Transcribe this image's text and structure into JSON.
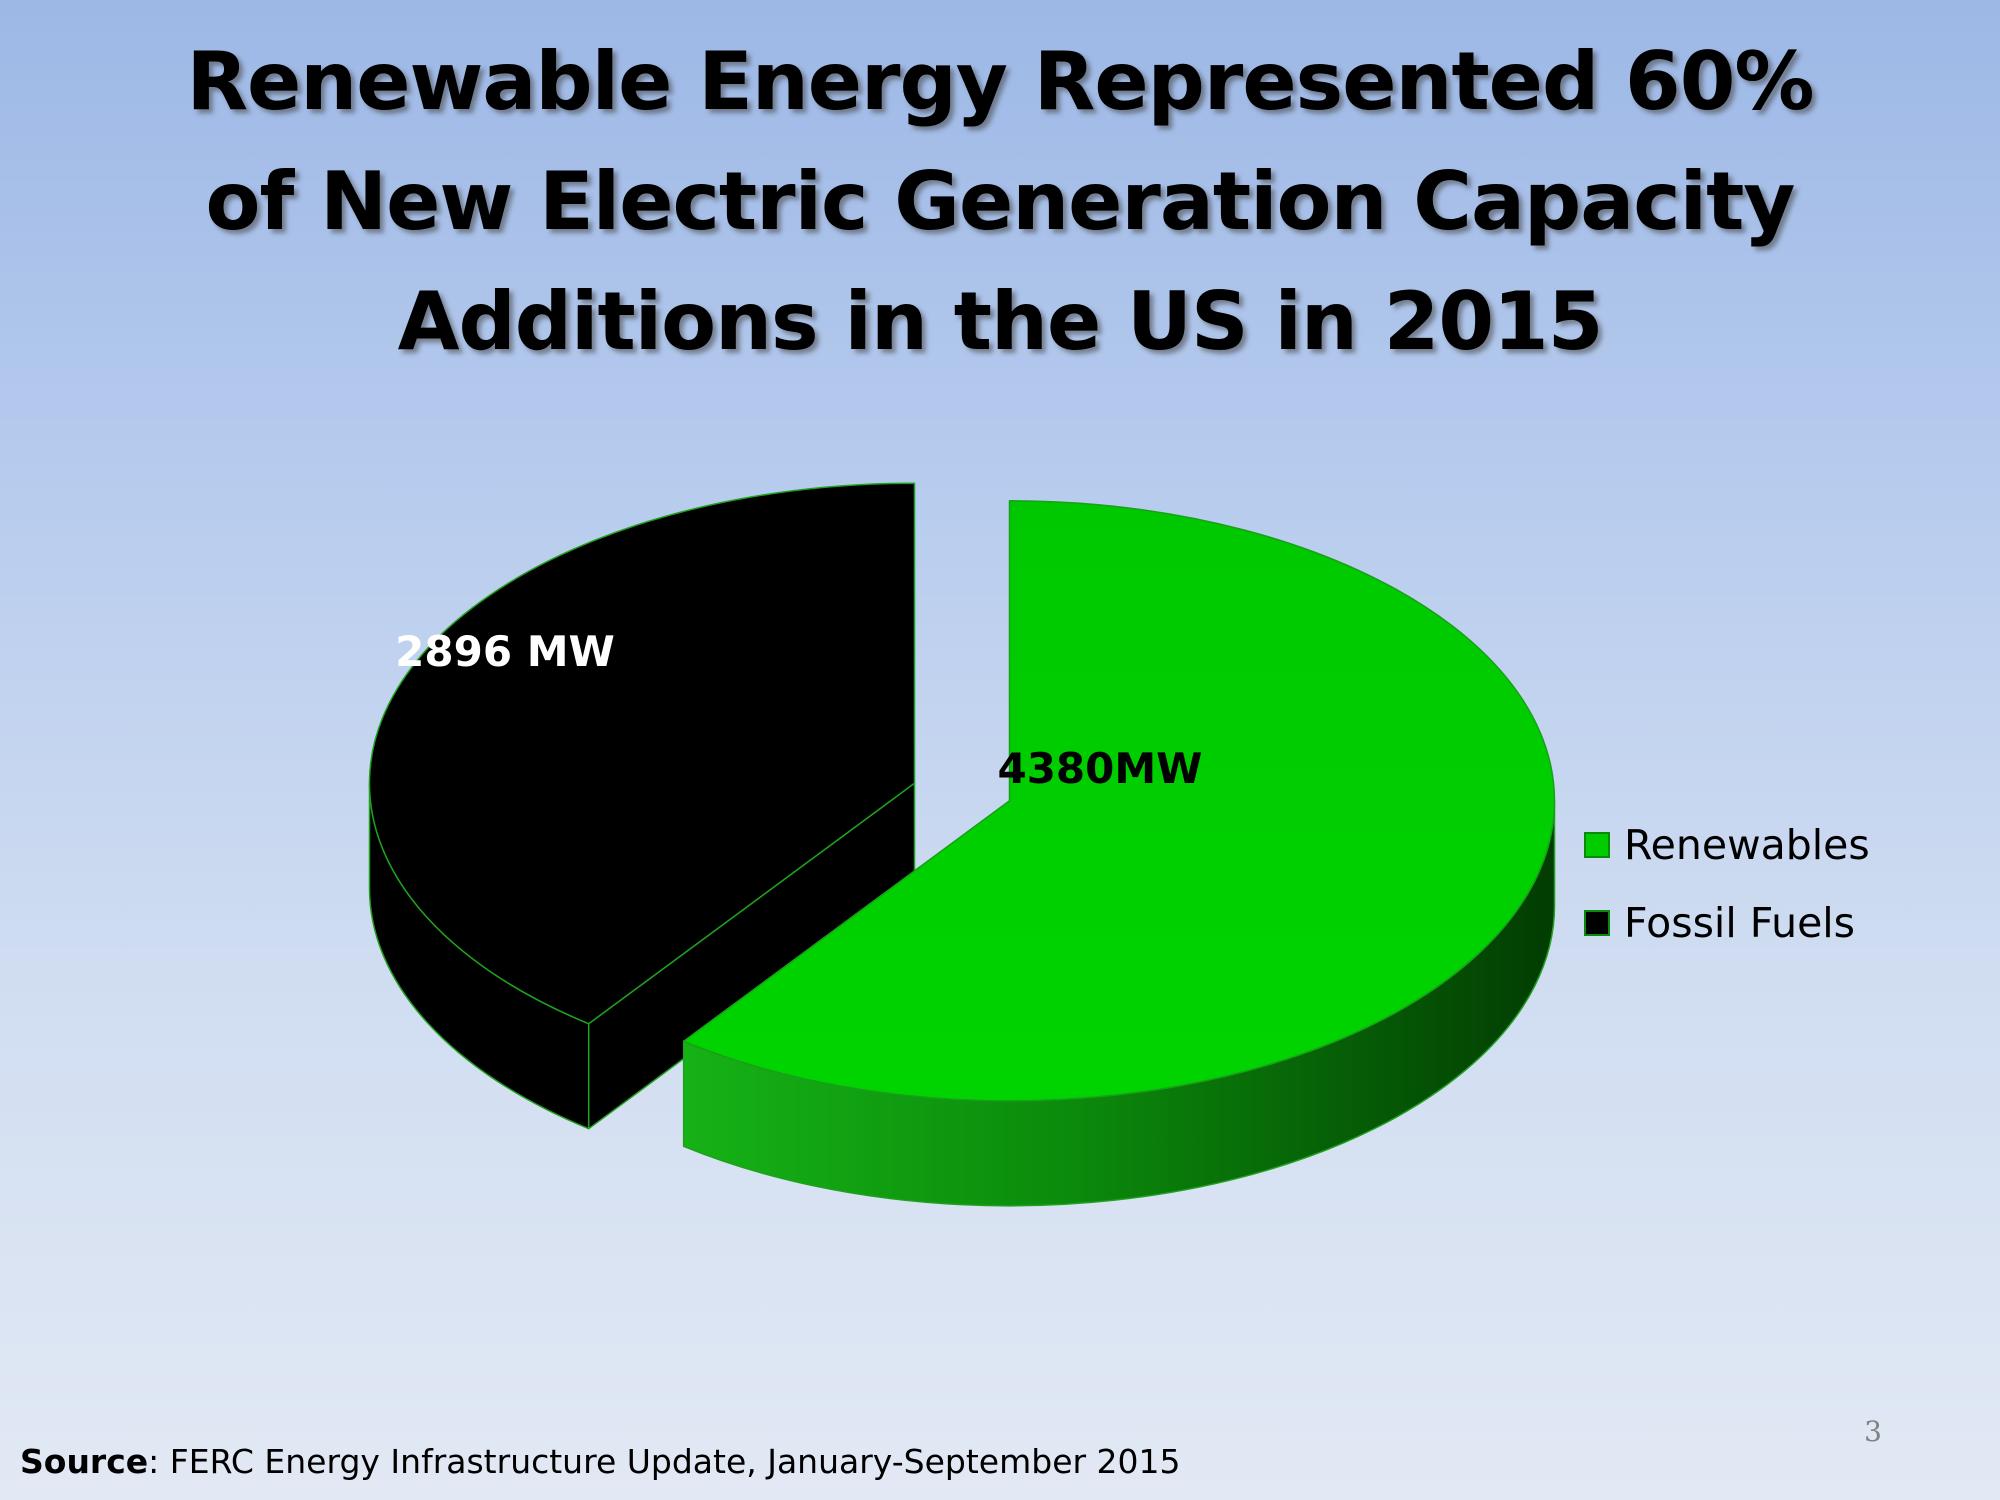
{
  "slide": {
    "title_lines": [
      "Renewable Energy Represented 60%",
      "of New Electric Generation Capacity",
      "Additions in the US in 2015"
    ],
    "source_label": "Source",
    "source_text": ": FERC Energy Infrastructure Update,  January-September 2015",
    "page_number": "3"
  },
  "chart_data": {
    "type": "pie",
    "style": "3d-exploded",
    "series": [
      {
        "name": "Renewables",
        "value": 4380,
        "label": "4380MW",
        "color": "#00cc00"
      },
      {
        "name": "Fossil Fuels",
        "value": 2896,
        "label": "2896 MW",
        "color": "#000000"
      }
    ],
    "legend": {
      "position": "right",
      "entries": [
        "Renewables",
        "Fossil Fuels"
      ]
    },
    "colors": {
      "edge": "#1fa01f",
      "renewables_side_dark": "#034a03",
      "fossil_side": "#000000"
    }
  }
}
